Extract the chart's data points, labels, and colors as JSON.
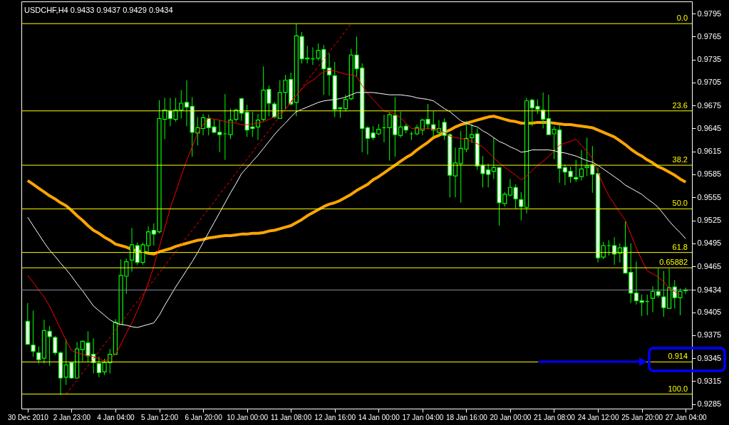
{
  "chart_data": {
    "type": "candlestick",
    "title": "USDCHF,H4 0.9433 0.9437 0.9429 0.9434",
    "color": "#00ff00",
    "categories": [
      "30 Dec 2010",
      null,
      null,
      null,
      null,
      null,
      null,
      null,
      "2 Jan 23:00",
      null,
      null,
      null,
      null,
      null,
      null,
      null,
      "4 Jan 04:00",
      null,
      null,
      null,
      null,
      null,
      null,
      null,
      "5 Jan 12:00",
      null,
      null,
      null,
      null,
      null,
      null,
      null,
      "6 Jan 20:00",
      null,
      null,
      null,
      null,
      null,
      null,
      null,
      "10 Jan 00:00",
      null,
      null,
      null,
      null,
      null,
      null,
      null,
      "11 Jan 08:00",
      null,
      null,
      null,
      null,
      null,
      null,
      null,
      "12 Jan 16:00",
      null,
      null,
      null,
      null,
      null,
      null,
      null,
      "14 Jan 00:00",
      null,
      null,
      null,
      null,
      null,
      null,
      null,
      "17 Jan 04:00",
      null,
      null,
      null,
      null,
      null,
      null,
      null,
      "18 Jan 16:00",
      null,
      null,
      null,
      null,
      null,
      null,
      null,
      "20 Jan 00:00",
      null,
      null,
      null,
      null,
      null,
      null,
      null,
      "21 Jan 08:00",
      null,
      null,
      null,
      null,
      null,
      null,
      null,
      "24 Jan 12:00",
      null,
      null,
      null,
      null,
      null,
      null,
      null,
      "25 Jan 20:00",
      null,
      null,
      null,
      null,
      null,
      null,
      null,
      "27 Jan 04:00"
    ],
    "ohlc": [
      [
        0.9393,
        0.9417,
        0.9363,
        0.9363
      ],
      [
        0.9362,
        0.9407,
        0.9347,
        0.9354
      ],
      [
        0.9352,
        0.936,
        0.9338,
        0.9343
      ],
      [
        0.9345,
        0.9395,
        0.9338,
        0.9381
      ],
      [
        0.938,
        0.9387,
        0.9335,
        0.9373
      ],
      [
        0.9372,
        0.9374,
        0.9349,
        0.9352
      ],
      [
        0.9352,
        0.9354,
        0.9297,
        0.9319
      ],
      [
        0.932,
        0.937,
        0.931,
        0.9336
      ],
      [
        0.9339,
        0.9339,
        0.9318,
        0.9319
      ],
      [
        0.9319,
        0.9366,
        0.9318,
        0.9357
      ],
      [
        0.9356,
        0.9368,
        0.9341,
        0.9367
      ],
      [
        0.9365,
        0.938,
        0.934,
        0.9348
      ],
      [
        0.935,
        0.9371,
        0.9325,
        0.9339
      ],
      [
        0.9338,
        0.9347,
        0.932,
        0.9326
      ],
      [
        0.9327,
        0.9344,
        0.9323,
        0.9339
      ],
      [
        0.9339,
        0.9357,
        0.9325,
        0.935
      ],
      [
        0.935,
        0.9396,
        0.935,
        0.9392
      ],
      [
        0.9389,
        0.9474,
        0.9389,
        0.9453
      ],
      [
        0.9452,
        0.9475,
        0.9429,
        0.9471
      ],
      [
        0.9473,
        0.9515,
        0.9458,
        0.9493
      ],
      [
        0.9492,
        0.9496,
        0.9467,
        0.947
      ],
      [
        0.947,
        0.9496,
        0.9467,
        0.9493
      ],
      [
        0.9492,
        0.9517,
        0.9481,
        0.951
      ],
      [
        0.9512,
        0.9521,
        0.9492,
        0.9507
      ],
      [
        0.951,
        0.9682,
        0.9508,
        0.9658
      ],
      [
        0.9657,
        0.9685,
        0.9631,
        0.9669
      ],
      [
        0.9668,
        0.9685,
        0.9648,
        0.9658
      ],
      [
        0.9657,
        0.9685,
        0.9654,
        0.9669
      ],
      [
        0.9669,
        0.9695,
        0.9658,
        0.9678
      ],
      [
        0.9679,
        0.9708,
        0.9648,
        0.9673
      ],
      [
        0.9674,
        0.9686,
        0.9608,
        0.964
      ],
      [
        0.9639,
        0.966,
        0.9623,
        0.9646
      ],
      [
        0.9645,
        0.9664,
        0.9636,
        0.9659
      ],
      [
        0.9658,
        0.9663,
        0.9636,
        0.9646
      ],
      [
        0.9647,
        0.9657,
        0.9639,
        0.964
      ],
      [
        0.964,
        0.9656,
        0.9614,
        0.9637
      ],
      [
        0.9638,
        0.969,
        0.9604,
        0.9638
      ],
      [
        0.9637,
        0.9671,
        0.9631,
        0.9656
      ],
      [
        0.9657,
        0.9671,
        0.9654,
        0.9669
      ],
      [
        0.9684,
        0.9685,
        0.9655,
        0.9665
      ],
      [
        0.9666,
        0.9676,
        0.9634,
        0.9643
      ],
      [
        0.9647,
        0.9667,
        0.9634,
        0.9645
      ],
      [
        0.9647,
        0.9664,
        0.963,
        0.9656
      ],
      [
        0.9657,
        0.9726,
        0.9654,
        0.9695
      ],
      [
        0.9696,
        0.9701,
        0.9661,
        0.9678
      ],
      [
        0.9677,
        0.968,
        0.9658,
        0.966
      ],
      [
        0.9658,
        0.9708,
        0.9658,
        0.9692
      ],
      [
        0.9692,
        0.9715,
        0.967,
        0.9708
      ],
      [
        0.9709,
        0.9718,
        0.9675,
        0.9677
      ],
      [
        0.9679,
        0.9782,
        0.9661,
        0.9766
      ],
      [
        0.9765,
        0.9771,
        0.973,
        0.9736
      ],
      [
        0.9737,
        0.9753,
        0.973,
        0.9736
      ],
      [
        0.9736,
        0.9751,
        0.9728,
        0.9736
      ],
      [
        0.9737,
        0.9756,
        0.9734,
        0.9747
      ],
      [
        0.9748,
        0.9754,
        0.9689,
        0.9723
      ],
      [
        0.9724,
        0.9743,
        0.9688,
        0.9715
      ],
      [
        0.9714,
        0.9732,
        0.966,
        0.967
      ],
      [
        0.9671,
        0.9673,
        0.9659,
        0.9672
      ],
      [
        0.9671,
        0.9689,
        0.9667,
        0.9683
      ],
      [
        0.9684,
        0.9749,
        0.9682,
        0.9741
      ],
      [
        0.9741,
        0.9765,
        0.9713,
        0.9723
      ],
      [
        0.9724,
        0.973,
        0.9614,
        0.9645
      ],
      [
        0.9646,
        0.9648,
        0.9611,
        0.9632
      ],
      [
        0.9639,
        0.9648,
        0.963,
        0.9633
      ],
      [
        0.9638,
        0.9651,
        0.9636,
        0.9644
      ],
      [
        0.9646,
        0.9663,
        0.9627,
        0.9646
      ],
      [
        0.9646,
        0.9666,
        0.9603,
        0.9663
      ],
      [
        0.9662,
        0.9686,
        0.9608,
        0.9637
      ],
      [
        0.9636,
        0.9667,
        0.9633,
        0.9647
      ],
      [
        0.9648,
        0.9651,
        0.9639,
        0.9643
      ],
      [
        0.9638,
        0.9641,
        0.963,
        0.9638
      ],
      [
        0.9638,
        0.965,
        0.9636,
        0.9646
      ],
      [
        0.9643,
        0.9658,
        0.9636,
        0.9656
      ],
      [
        0.9657,
        0.9677,
        0.9644,
        0.9651
      ],
      [
        0.965,
        0.9668,
        0.9633,
        0.9643
      ],
      [
        0.964,
        0.9656,
        0.9636,
        0.9645
      ],
      [
        0.9653,
        0.9658,
        0.963,
        0.9636
      ],
      [
        0.9637,
        0.9639,
        0.9555,
        0.9584
      ],
      [
        0.9583,
        0.962,
        0.9555,
        0.96
      ],
      [
        0.9599,
        0.9642,
        0.9548,
        0.9619
      ],
      [
        0.9618,
        0.9655,
        0.9614,
        0.9632
      ],
      [
        0.9633,
        0.9651,
        0.9626,
        0.9637
      ],
      [
        0.9638,
        0.9645,
        0.9591,
        0.9596
      ],
      [
        0.9597,
        0.9609,
        0.9568,
        0.9586
      ],
      [
        0.9591,
        0.9599,
        0.9568,
        0.9585
      ],
      [
        0.9589,
        0.9633,
        0.9579,
        0.9594
      ],
      [
        0.9594,
        0.9595,
        0.9518,
        0.9548
      ],
      [
        0.9547,
        0.9562,
        0.9543,
        0.9559
      ],
      [
        0.9558,
        0.9579,
        0.9556,
        0.9568
      ],
      [
        0.9568,
        0.9572,
        0.954,
        0.9553
      ],
      [
        0.9552,
        0.9562,
        0.9525,
        0.9543
      ],
      [
        0.9542,
        0.9685,
        0.9534,
        0.9681
      ],
      [
        0.9682,
        0.9684,
        0.9648,
        0.9672
      ],
      [
        0.9674,
        0.9683,
        0.9664,
        0.967
      ],
      [
        0.9669,
        0.9692,
        0.9645,
        0.9657
      ],
      [
        0.9658,
        0.9689,
        0.9637,
        0.9637
      ],
      [
        0.9638,
        0.9648,
        0.9605,
        0.9644
      ],
      [
        0.9643,
        0.9649,
        0.9574,
        0.9593
      ],
      [
        0.9594,
        0.9598,
        0.9571,
        0.9588
      ],
      [
        0.9589,
        0.9595,
        0.9574,
        0.9582
      ],
      [
        0.9581,
        0.9604,
        0.9575,
        0.9579
      ],
      [
        0.9582,
        0.9617,
        0.9577,
        0.9592
      ],
      [
        0.9594,
        0.9633,
        0.9583,
        0.9596
      ],
      [
        0.9598,
        0.9622,
        0.9561,
        0.9585
      ],
      [
        0.9586,
        0.9594,
        0.947,
        0.9476
      ],
      [
        0.9477,
        0.9497,
        0.9474,
        0.9492
      ],
      [
        0.9492,
        0.9499,
        0.9479,
        0.9492
      ],
      [
        0.9492,
        0.9503,
        0.9467,
        0.9481
      ],
      [
        0.9482,
        0.9495,
        0.947,
        0.9489
      ],
      [
        0.949,
        0.9524,
        0.9456,
        0.9456
      ],
      [
        0.9457,
        0.9495,
        0.9417,
        0.943
      ],
      [
        0.943,
        0.9471,
        0.9415,
        0.942
      ],
      [
        0.942,
        0.9428,
        0.94,
        0.9418
      ],
      [
        0.9419,
        0.9428,
        0.9401,
        0.9419
      ],
      [
        0.9423,
        0.9439,
        0.9405,
        0.9432
      ],
      [
        0.9432,
        0.9462,
        0.9424,
        0.9427
      ],
      [
        0.9425,
        0.9459,
        0.9399,
        0.9411
      ],
      [
        0.941,
        0.9462,
        0.941,
        0.9437
      ],
      [
        0.9438,
        0.9447,
        0.941,
        0.9424
      ],
      [
        0.9424,
        0.9436,
        0.9401,
        0.9432
      ],
      [
        0.9433,
        0.9437,
        0.9429,
        0.9434
      ]
    ],
    "series": [
      {
        "type": "line",
        "color": "#ff0000",
        "values": [
          0.9453,
          0.9444,
          0.9434,
          0.9425,
          0.9413,
          0.9398,
          0.9383,
          0.9368,
          0.9355,
          0.9352,
          0.935,
          0.9348,
          0.9347,
          0.9344,
          0.9341,
          0.9345,
          0.935,
          0.9363,
          0.9378,
          0.9391,
          0.9407,
          0.9424,
          0.9443,
          0.9465,
          0.949,
          0.9515,
          0.9541,
          0.9562,
          0.9583,
          0.9603,
          0.9621,
          0.9639,
          0.965,
          0.9659,
          0.9657,
          0.9656,
          0.9654,
          0.9653,
          0.9652,
          0.965,
          0.965,
          0.9651,
          0.9652,
          0.9654,
          0.9657,
          0.966,
          0.9665,
          0.967,
          0.9679,
          0.9688,
          0.9696,
          0.9704,
          0.9708,
          0.9714,
          0.9719,
          0.9721,
          0.972,
          0.9718,
          0.9716,
          0.9715,
          0.9713,
          0.9701,
          0.9691,
          0.9683,
          0.9675,
          0.9668,
          0.9666,
          0.9664,
          0.9659,
          0.9652,
          0.9645,
          0.9645,
          0.9645,
          0.9645,
          0.9644,
          0.9643,
          0.964,
          0.9635,
          0.9633,
          0.9632,
          0.9631,
          0.9628,
          0.9625,
          0.9621,
          0.9614,
          0.9607,
          0.96,
          0.9594,
          0.9589,
          0.9584,
          0.9578,
          0.9583,
          0.959,
          0.9597,
          0.9602,
          0.9608,
          0.9616,
          0.9623,
          0.9626,
          0.9628,
          0.9631,
          0.9623,
          0.9615,
          0.9606,
          0.9588,
          0.9571,
          0.9557,
          0.9546,
          0.9535,
          0.9525,
          0.9507,
          0.9489,
          0.9473,
          0.9459,
          0.9455,
          0.9451,
          0.9445,
          0.9436,
          0.9432,
          0.9428,
          null
        ]
      },
      {
        "type": "line",
        "color": "#ffffff",
        "values": [
          0.9529,
          0.9518,
          0.9507,
          0.9496,
          0.9486,
          0.9478,
          0.9469,
          0.9461,
          0.9452,
          0.9442,
          0.9433,
          0.9423,
          0.9413,
          0.9407,
          0.9401,
          0.9395,
          0.9391,
          0.9389,
          0.9388,
          0.9386,
          0.9385,
          0.9387,
          0.9389,
          0.9391,
          0.9401,
          0.9414,
          0.9426,
          0.9438,
          0.9449,
          0.946,
          0.9471,
          0.9483,
          0.9496,
          0.9509,
          0.9522,
          0.9535,
          0.9548,
          0.9561,
          0.9573,
          0.9586,
          0.9594,
          0.9602,
          0.961,
          0.9619,
          0.9628,
          0.9637,
          0.9645,
          0.9652,
          0.966,
          0.9667,
          0.967,
          0.9673,
          0.9676,
          0.9679,
          0.9681,
          0.9682,
          0.9683,
          0.9684,
          0.9686,
          0.9689,
          0.9692,
          0.9692,
          0.9692,
          0.9692,
          0.9691,
          0.969,
          0.9689,
          0.9689,
          0.9689,
          0.9688,
          0.9687,
          0.9685,
          0.9684,
          0.9683,
          0.9681,
          0.9676,
          0.9671,
          0.9667,
          0.9661,
          0.9655,
          0.9652,
          0.9649,
          0.9647,
          0.9642,
          0.9638,
          0.9633,
          0.9628,
          0.9625,
          0.9621,
          0.9618,
          0.9614,
          0.9615,
          0.9617,
          0.9617,
          0.9617,
          0.9617,
          0.9616,
          0.9614,
          0.9613,
          0.9611,
          0.9609,
          0.9606,
          0.9603,
          0.9601,
          0.9597,
          0.9592,
          0.9587,
          0.9582,
          0.9577,
          0.9571,
          0.9567,
          0.9563,
          0.9559,
          0.9553,
          0.9548,
          0.9542,
          0.9533,
          0.9524,
          0.9516,
          0.9509,
          0.9501
        ]
      },
      {
        "type": "line",
        "color": "#ffa500",
        "values": [
          0.9577,
          0.9572,
          0.9567,
          0.9562,
          0.9557,
          0.9553,
          0.9548,
          0.9544,
          0.9538,
          0.9531,
          0.9525,
          0.9518,
          0.9512,
          0.9508,
          0.9503,
          0.9499,
          0.9494,
          0.9492,
          0.949,
          0.9487,
          0.9485,
          0.9484,
          0.9482,
          0.9481,
          0.9484,
          0.9486,
          0.9488,
          0.9491,
          0.9493,
          0.9495,
          0.9497,
          0.9499,
          0.95,
          0.9502,
          0.9503,
          0.9504,
          0.9505,
          0.9505,
          0.9506,
          0.9507,
          0.9507,
          0.9508,
          0.9508,
          0.9509,
          0.9511,
          0.9512,
          0.9514,
          0.9516,
          0.9518,
          0.9522,
          0.9526,
          0.9531,
          0.9535,
          0.9539,
          0.9543,
          0.9546,
          0.9548,
          0.9551,
          0.9555,
          0.9559,
          0.9564,
          0.9568,
          0.9572,
          0.9578,
          0.9582,
          0.9587,
          0.9592,
          0.9597,
          0.9602,
          0.9607,
          0.9611,
          0.9617,
          0.9622,
          0.9627,
          0.9633,
          0.9636,
          0.964,
          0.9643,
          0.9647,
          0.965,
          0.9652,
          0.9654,
          0.9656,
          0.9658,
          0.966,
          0.9661,
          0.9659,
          0.9657,
          0.9655,
          0.9654,
          0.9652,
          0.9652,
          0.9652,
          0.9653,
          0.9653,
          0.9653,
          0.9652,
          0.9651,
          0.965,
          0.965,
          0.9649,
          0.9648,
          0.9647,
          0.9646,
          0.9643,
          0.964,
          0.9637,
          0.9634,
          0.9629,
          0.9624,
          0.9618,
          0.9613,
          0.9609,
          0.9604,
          0.96,
          0.9595,
          0.9592,
          0.9588,
          0.9584,
          0.9579,
          0.9575
        ]
      },
      {
        "type": "line",
        "color": "#ff0000",
        "line_style": "dashed",
        "values": [
          null,
          null,
          null,
          null,
          null,
          null,
          null,
          0.9298,
          0.9307,
          0.9316,
          0.9326,
          0.9335,
          0.9344,
          0.9354,
          0.9363,
          0.9372,
          0.9382,
          0.9391,
          0.94,
          0.941,
          0.9419,
          0.9428,
          0.9438,
          0.9447,
          0.9456,
          0.9466,
          0.9475,
          0.9484,
          0.9493,
          0.9503,
          0.9512,
          0.9521,
          0.9531,
          0.954,
          0.9549,
          0.9559,
          0.9568,
          0.9577,
          0.9587,
          0.9596,
          0.9605,
          0.9614,
          0.9624,
          0.9633,
          0.9642,
          0.9652,
          0.9661,
          0.967,
          0.968,
          0.9689,
          0.9698,
          0.9708,
          0.9717,
          0.9726,
          0.9735,
          0.9745,
          0.9754,
          0.9763,
          0.9773,
          0.9782,
          null,
          null,
          null,
          null,
          null,
          null,
          null,
          null,
          null,
          null,
          null,
          null,
          null,
          null,
          null,
          null,
          null,
          null,
          null,
          null,
          null,
          null,
          null,
          null,
          null,
          null,
          null,
          null,
          null,
          null,
          null,
          null,
          null,
          null,
          null,
          null,
          null,
          null,
          null,
          null,
          null,
          null,
          null,
          null,
          null,
          null,
          null,
          null,
          null,
          null,
          null,
          null,
          null,
          null,
          null,
          null,
          null,
          null,
          null,
          null,
          null
        ]
      }
    ],
    "ylim": [
      0.9279,
      0.9811
    ],
    "yticks": [
      0.9795,
      0.9765,
      0.9735,
      0.9705,
      0.9675,
      0.9645,
      0.9615,
      0.9585,
      0.9555,
      0.9525,
      0.9495,
      0.9465,
      0.9434,
      0.9405,
      0.9375,
      0.9345,
      0.9315,
      0.9285
    ],
    "ref_lines": [
      {
        "axis": "y",
        "value": 0.9782,
        "color": "#ffff00"
      },
      {
        "axis": "y",
        "value": 0.9668,
        "color": "#ffff00"
      },
      {
        "axis": "y",
        "value": 0.9597,
        "color": "#ffff00"
      },
      {
        "axis": "y",
        "value": 0.954,
        "color": "#ffff00"
      },
      {
        "axis": "y",
        "value": 0.9483,
        "color": "#ffff00"
      },
      {
        "axis": "y",
        "value": 0.9463,
        "color": "#ffff00"
      },
      {
        "axis": "y",
        "value": 0.934,
        "color": "#ffff00"
      },
      {
        "axis": "y",
        "value": 0.9298,
        "color": "#ffff00"
      },
      {
        "axis": "y",
        "value": 0.9434,
        "color": "#8c8c9c"
      }
    ],
    "annotations": [
      {
        "text": "0.0",
        "y": 0.9782
      },
      {
        "text": "23.6",
        "y": 0.9668
      },
      {
        "text": "38.2",
        "y": 0.9597
      },
      {
        "text": "50.0",
        "y": 0.954
      },
      {
        "text": "61.8",
        "y": 0.9483
      },
      {
        "text": "0.65882",
        "y": 0.9463
      },
      {
        "text": "0.914",
        "y": 0.934
      },
      {
        "text": "100.0",
        "y": 0.9298
      }
    ]
  }
}
